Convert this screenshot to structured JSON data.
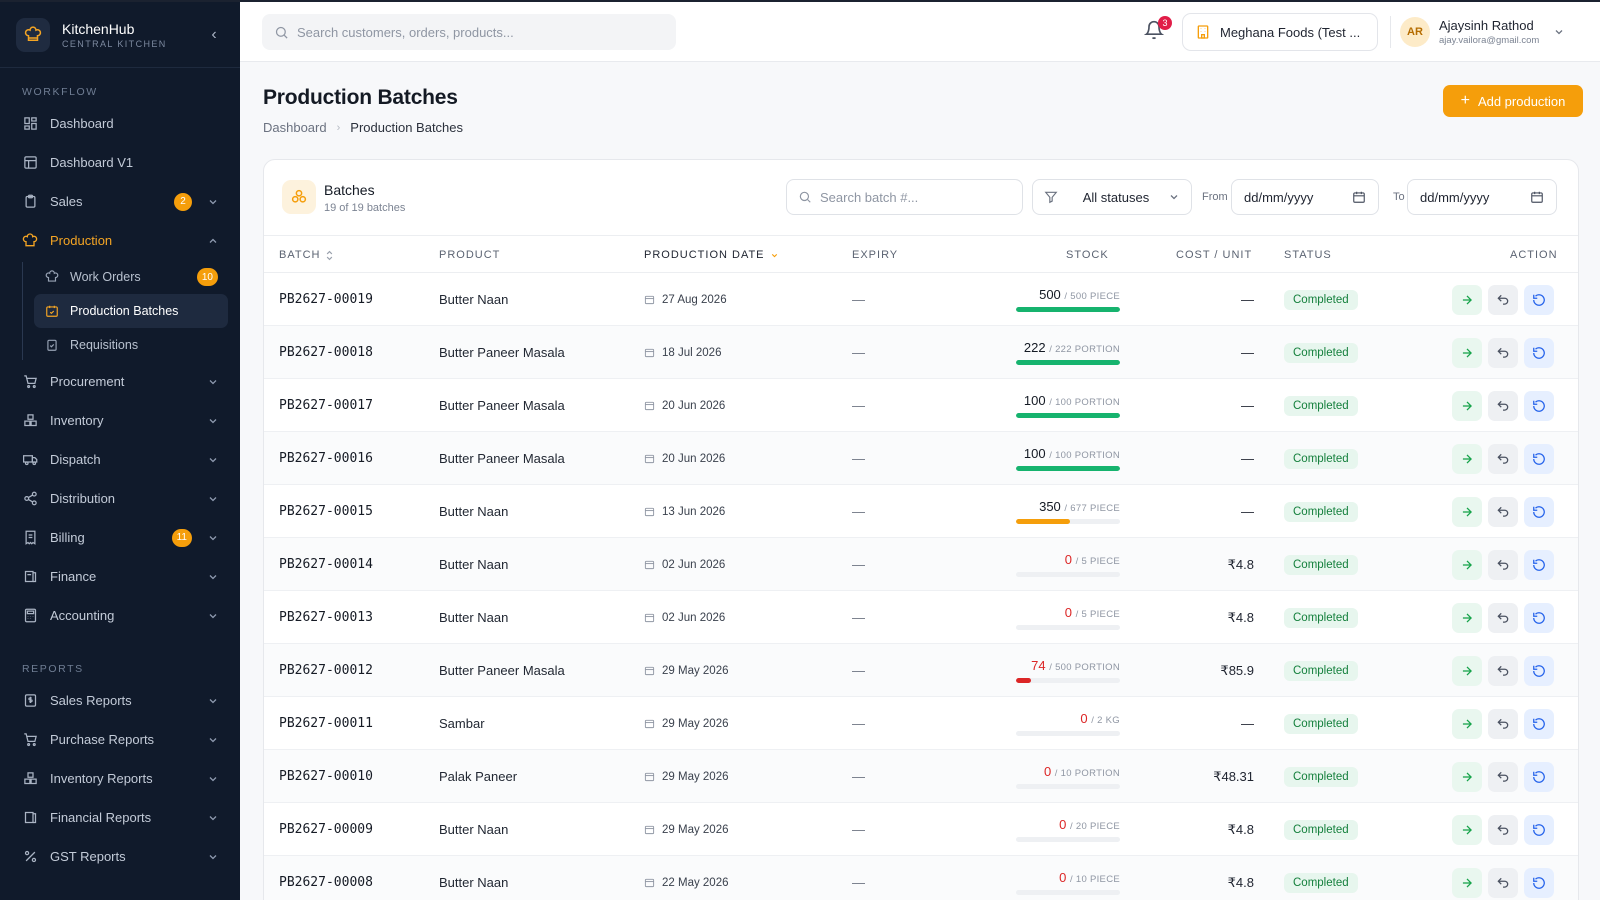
{
  "brand": {
    "name": "KitchenHub",
    "subtitle": "CENTRAL KITCHEN"
  },
  "sidebar": {
    "workflow_label": "WORKFLOW",
    "reports_label": "REPORTS",
    "workflow": [
      {
        "label": "Dashboard",
        "icon": "grid-icon"
      },
      {
        "label": "Dashboard V1",
        "icon": "layout-icon"
      },
      {
        "label": "Sales",
        "icon": "clipboard-icon",
        "badge": "2"
      },
      {
        "label": "Production",
        "icon": "chef-hat-icon"
      },
      {
        "label": "Procurement",
        "icon": "cart-icon"
      },
      {
        "label": "Inventory",
        "icon": "boxes-icon"
      },
      {
        "label": "Dispatch",
        "icon": "truck-icon"
      },
      {
        "label": "Distribution",
        "icon": "share-icon"
      },
      {
        "label": "Billing",
        "icon": "receipt-icon",
        "badge": "11"
      },
      {
        "label": "Finance",
        "icon": "book-icon"
      },
      {
        "label": "Accounting",
        "icon": "calculator-icon"
      }
    ],
    "production_sub": [
      {
        "label": "Work Orders",
        "badge": "10"
      },
      {
        "label": "Production Batches"
      },
      {
        "label": "Requisitions"
      }
    ],
    "reports": [
      {
        "label": "Sales Reports"
      },
      {
        "label": "Purchase Reports"
      },
      {
        "label": "Inventory Reports"
      },
      {
        "label": "Financial Reports"
      },
      {
        "label": "GST Reports"
      }
    ]
  },
  "topbar": {
    "search_placeholder": "Search customers, orders, products...",
    "notifications": "3",
    "company": "Meghana Foods (Test ...",
    "user": {
      "initials": "AR",
      "name": "Ajaysinh Rathod",
      "email": "ajay.vailora@gmail.com"
    }
  },
  "page": {
    "title": "Production Batches",
    "breadcrumb": [
      "Dashboard",
      "Production Batches"
    ],
    "add_button": "Add production"
  },
  "card": {
    "title": "Batches",
    "subtitle": "19 of 19 batches",
    "search_placeholder": "Search batch #...",
    "status_filter": "All statuses",
    "from_label": "From",
    "to_label": "To",
    "date_placeholder": "dd/mm/yyyy"
  },
  "columns": [
    "BATCH",
    "PRODUCT",
    "PRODUCTION DATE",
    "EXPIRY",
    "STOCK",
    "COST / UNIT",
    "STATUS",
    "ACTION"
  ],
  "rows": [
    {
      "batch": "PB2627-00019",
      "product": "Butter Naan",
      "date": "27 Aug 2026",
      "expiry": "—",
      "qty": "500",
      "total": "/ 500 PIECE",
      "fill": 1.0,
      "cost": "—",
      "status": "Completed"
    },
    {
      "batch": "PB2627-00018",
      "product": "Butter Paneer Masala",
      "date": "18 Jul 2026",
      "expiry": "—",
      "qty": "222",
      "total": "/ 222 PORTION",
      "fill": 1.0,
      "cost": "—",
      "status": "Completed"
    },
    {
      "batch": "PB2627-00017",
      "product": "Butter Paneer Masala",
      "date": "20 Jun 2026",
      "expiry": "—",
      "qty": "100",
      "total": "/ 100 PORTION",
      "fill": 1.0,
      "cost": "—",
      "status": "Completed"
    },
    {
      "batch": "PB2627-00016",
      "product": "Butter Paneer Masala",
      "date": "20 Jun 2026",
      "expiry": "—",
      "qty": "100",
      "total": "/ 100 PORTION",
      "fill": 1.0,
      "cost": "—",
      "status": "Completed"
    },
    {
      "batch": "PB2627-00015",
      "product": "Butter Naan",
      "date": "13 Jun 2026",
      "expiry": "—",
      "qty": "350",
      "total": "/ 677 PIECE",
      "fill": 0.52,
      "cost": "—",
      "status": "Completed"
    },
    {
      "batch": "PB2627-00014",
      "product": "Butter Naan",
      "date": "02 Jun 2026",
      "expiry": "—",
      "qty": "0",
      "total": "/ 5 PIECE",
      "fill": 0,
      "cost": "₹4.8",
      "status": "Completed"
    },
    {
      "batch": "PB2627-00013",
      "product": "Butter Naan",
      "date": "02 Jun 2026",
      "expiry": "—",
      "qty": "0",
      "total": "/ 5 PIECE",
      "fill": 0,
      "cost": "₹4.8",
      "status": "Completed"
    },
    {
      "batch": "PB2627-00012",
      "product": "Butter Paneer Masala",
      "date": "29 May 2026",
      "expiry": "—",
      "qty": "74",
      "total": "/ 500 PORTION",
      "fill": 0.148,
      "cost": "₹85.9",
      "status": "Completed"
    },
    {
      "batch": "PB2627-00011",
      "product": "Sambar",
      "date": "29 May 2026",
      "expiry": "—",
      "qty": "0",
      "total": "/ 2 KG",
      "fill": 0,
      "cost": "—",
      "status": "Completed"
    },
    {
      "batch": "PB2627-00010",
      "product": "Palak Paneer",
      "date": "29 May 2026",
      "expiry": "—",
      "qty": "0",
      "total": "/ 10 PORTION",
      "fill": 0,
      "cost": "₹48.31",
      "status": "Completed"
    },
    {
      "batch": "PB2627-00009",
      "product": "Butter Naan",
      "date": "29 May 2026",
      "expiry": "—",
      "qty": "0",
      "total": "/ 20 PIECE",
      "fill": 0,
      "cost": "₹4.8",
      "status": "Completed"
    },
    {
      "batch": "PB2627-00008",
      "product": "Butter Naan",
      "date": "22 May 2026",
      "expiry": "—",
      "qty": "0",
      "total": "/ 10 PIECE",
      "fill": 0,
      "cost": "₹4.8",
      "status": "Completed"
    }
  ],
  "colors": {
    "accent": "#f59e0b",
    "success": "#16b36e",
    "warning": "#f59e0b",
    "danger": "#dc2626",
    "sidebar": "#101a2b"
  }
}
